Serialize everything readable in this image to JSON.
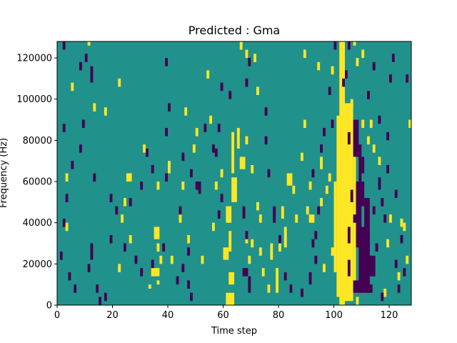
{
  "chart_data": {
    "type": "heatmap",
    "title": "Predicted : Gma",
    "xlabel": "Time step",
    "ylabel": "Frequency (Hz)",
    "xlim": [
      0,
      128
    ],
    "ylim": [
      0,
      128000
    ],
    "x_ticks": [
      0,
      20,
      40,
      60,
      80,
      100,
      120
    ],
    "y_ticks": [
      0,
      20000,
      40000,
      60000,
      80000,
      100000,
      120000
    ],
    "x_tick_labels": [
      "0",
      "20",
      "40",
      "60",
      "80",
      "100",
      "120"
    ],
    "y_tick_labels": [
      "0",
      "20000",
      "40000",
      "60000",
      "80000",
      "100000",
      "120000"
    ],
    "grid": false,
    "colors": {
      "background": "#21918c",
      "high": "#fde725",
      "low": "#440154"
    },
    "yellow_cells": [
      [
        102,
        104,
        0,
        128000
      ],
      [
        103,
        107,
        2000,
        98000
      ],
      [
        101,
        103,
        4000,
        92000
      ],
      [
        107,
        108,
        10000,
        90000
      ],
      [
        100,
        101,
        16000,
        60000
      ],
      [
        61,
        64,
        0,
        6000
      ],
      [
        62,
        64,
        10000,
        16000
      ],
      [
        60,
        62,
        22000,
        28000
      ],
      [
        62,
        63,
        26000,
        36000
      ],
      [
        61,
        63,
        40000,
        48000
      ],
      [
        63,
        65,
        50000,
        62000
      ],
      [
        63,
        64,
        64000,
        84000
      ],
      [
        65,
        66,
        76000,
        86000
      ],
      [
        66,
        68,
        66000,
        72000
      ],
      [
        68,
        69,
        78000,
        82000
      ],
      [
        79,
        80,
        6000,
        18000
      ],
      [
        77,
        78,
        22000,
        30000
      ],
      [
        82,
        83,
        28000,
        38000
      ],
      [
        81,
        82,
        42000,
        48000
      ],
      [
        83,
        85,
        58000,
        64000
      ],
      [
        85,
        86,
        54000,
        58000
      ],
      [
        36,
        37,
        26000,
        30000
      ],
      [
        35,
        37,
        32000,
        38000
      ],
      [
        37,
        38,
        20000,
        24000
      ],
      [
        35,
        36,
        14000,
        16000
      ],
      [
        34,
        37,
        14000,
        18000
      ],
      [
        36,
        37,
        10000,
        12000
      ],
      [
        33,
        34,
        8000,
        10000
      ],
      [
        22,
        23,
        16000,
        20000
      ],
      [
        23,
        24,
        40000,
        44000
      ],
      [
        24,
        25,
        48000,
        52000
      ],
      [
        26,
        27,
        30000,
        34000
      ],
      [
        45,
        46,
        56000,
        60000
      ],
      [
        47,
        48,
        30000,
        34000
      ],
      [
        44,
        45,
        40000,
        44000
      ],
      [
        52,
        53,
        20000,
        24000
      ],
      [
        40,
        41,
        64000,
        70000
      ],
      [
        36,
        37,
        56000,
        60000
      ],
      [
        41,
        42,
        20000,
        24000
      ],
      [
        46,
        47,
        92000,
        96000
      ],
      [
        25,
        27,
        60000,
        64000
      ],
      [
        31,
        32,
        74000,
        78000
      ],
      [
        13,
        14,
        94000,
        98000
      ],
      [
        17,
        18,
        92000,
        96000
      ],
      [
        22,
        23,
        106000,
        110000
      ],
      [
        5,
        6,
        104000,
        108000
      ],
      [
        3,
        4,
        36000,
        40000
      ],
      [
        3,
        4,
        60000,
        64000
      ],
      [
        11,
        12,
        126000,
        128000
      ],
      [
        90,
        91,
        44000,
        48000
      ],
      [
        91,
        93,
        40000,
        44000
      ],
      [
        95,
        96,
        66000,
        72000
      ],
      [
        97,
        98,
        54000,
        58000
      ],
      [
        98,
        99,
        60000,
        64000
      ],
      [
        95,
        96,
        48000,
        52000
      ],
      [
        99,
        100,
        24000,
        28000
      ],
      [
        108,
        109,
        0,
        4000
      ],
      [
        110,
        111,
        120000,
        124000
      ],
      [
        112,
        113,
        78000,
        82000
      ],
      [
        113,
        114,
        86000,
        90000
      ],
      [
        114,
        115,
        74000,
        78000
      ],
      [
        116,
        117,
        68000,
        72000
      ],
      [
        119,
        120,
        28000,
        32000
      ],
      [
        123,
        124,
        12000,
        16000
      ],
      [
        124,
        125,
        38000,
        42000
      ],
      [
        125,
        126,
        36000,
        40000
      ],
      [
        126,
        127,
        20000,
        24000
      ],
      [
        127,
        128,
        86000,
        90000
      ],
      [
        120,
        121,
        40000,
        44000
      ],
      [
        118,
        119,
        4000,
        8000
      ],
      [
        106,
        107,
        96000,
        100000
      ],
      [
        107,
        108,
        126000,
        128000
      ],
      [
        108,
        109,
        116000,
        120000
      ],
      [
        110,
        111,
        86000,
        90000
      ],
      [
        89,
        90,
        120000,
        124000
      ],
      [
        89,
        90,
        86000,
        90000
      ],
      [
        94,
        95,
        114000,
        118000
      ],
      [
        99,
        100,
        112000,
        116000
      ],
      [
        101,
        102,
        46000,
        50000
      ],
      [
        88,
        89,
        70000,
        74000
      ],
      [
        71,
        72,
        118000,
        122000
      ],
      [
        72,
        73,
        102000,
        106000
      ],
      [
        70,
        71,
        64000,
        68000
      ],
      [
        68,
        69,
        30000,
        34000
      ],
      [
        69,
        70,
        20000,
        24000
      ],
      [
        70,
        71,
        28000,
        32000
      ],
      [
        73,
        74,
        24000,
        28000
      ],
      [
        74,
        75,
        14000,
        18000
      ],
      [
        76,
        77,
        6000,
        10000
      ],
      [
        57,
        58,
        56000,
        60000
      ],
      [
        56,
        57,
        36000,
        40000
      ],
      [
        59,
        60,
        62000,
        66000
      ],
      [
        54,
        55,
        110000,
        114000
      ],
      [
        55,
        56,
        88000,
        92000
      ],
      [
        50,
        51,
        82000,
        86000
      ],
      [
        49,
        50,
        74000,
        78000
      ],
      [
        66,
        67,
        124000,
        128000
      ],
      [
        68,
        69,
        120000,
        124000
      ],
      [
        72,
        73,
        46000,
        50000
      ],
      [
        73,
        74,
        40000,
        44000
      ],
      [
        80,
        81,
        26000,
        30000
      ],
      [
        86,
        87,
        40000,
        44000
      ],
      [
        91,
        92,
        56000,
        60000
      ],
      [
        96,
        97,
        16000,
        20000
      ]
    ],
    "purple_cells": [
      [
        109,
        113,
        6000,
        38000
      ],
      [
        111,
        113,
        14000,
        52000
      ],
      [
        108,
        110,
        28000,
        48000
      ],
      [
        108,
        111,
        48000,
        60000
      ],
      [
        109,
        110,
        60000,
        78000
      ],
      [
        110,
        111,
        64000,
        72000
      ],
      [
        107,
        109,
        72000,
        90000
      ],
      [
        113,
        115,
        14000,
        24000
      ],
      [
        105,
        106,
        14000,
        22000
      ],
      [
        107,
        110,
        6000,
        12000
      ],
      [
        112,
        114,
        6000,
        10000
      ],
      [
        105,
        106,
        30000,
        38000
      ],
      [
        69,
        70,
        6000,
        14000
      ],
      [
        67,
        69,
        14000,
        18000
      ],
      [
        68,
        69,
        32000,
        36000
      ],
      [
        67,
        68,
        42000,
        48000
      ],
      [
        58,
        59,
        42000,
        46000
      ],
      [
        59,
        60,
        50000,
        54000
      ],
      [
        56,
        57,
        74000,
        78000
      ],
      [
        58,
        59,
        84000,
        88000
      ],
      [
        50,
        52,
        56000,
        60000
      ],
      [
        48,
        49,
        62000,
        66000
      ],
      [
        51,
        52,
        54000,
        58000
      ],
      [
        45,
        46,
        70000,
        74000
      ],
      [
        44,
        45,
        44000,
        48000
      ],
      [
        47,
        48,
        24000,
        28000
      ],
      [
        45,
        46,
        16000,
        20000
      ],
      [
        43,
        44,
        10000,
        14000
      ],
      [
        47,
        48,
        8000,
        12000
      ],
      [
        48,
        49,
        2000,
        6000
      ],
      [
        39,
        40,
        60000,
        64000
      ],
      [
        38,
        39,
        26000,
        30000
      ],
      [
        34,
        35,
        18000,
        22000
      ],
      [
        30,
        31,
        14000,
        18000
      ],
      [
        26,
        27,
        48000,
        52000
      ],
      [
        24,
        25,
        26000,
        30000
      ],
      [
        21,
        22,
        44000,
        48000
      ],
      [
        19,
        20,
        50000,
        54000
      ],
      [
        15,
        16,
        0,
        4000
      ],
      [
        14,
        15,
        6000,
        10000
      ],
      [
        12,
        13,
        22000,
        30000
      ],
      [
        11,
        12,
        16000,
        20000
      ],
      [
        13,
        14,
        60000,
        64000
      ],
      [
        8,
        9,
        74000,
        78000
      ],
      [
        9,
        10,
        86000,
        90000
      ],
      [
        12,
        13,
        108000,
        116000
      ],
      [
        8,
        9,
        114000,
        118000
      ],
      [
        2,
        3,
        124000,
        128000
      ],
      [
        4,
        5,
        12000,
        16000
      ],
      [
        1,
        2,
        22000,
        26000
      ],
      [
        2,
        3,
        38000,
        42000
      ],
      [
        3,
        4,
        50000,
        54000
      ],
      [
        5,
        6,
        66000,
        70000
      ],
      [
        2,
        3,
        84000,
        88000
      ],
      [
        10,
        11,
        118000,
        122000
      ],
      [
        6,
        7,
        6000,
        10000
      ],
      [
        17,
        18,
        2000,
        6000
      ],
      [
        19,
        20,
        30000,
        34000
      ],
      [
        28,
        29,
        20000,
        24000
      ],
      [
        30,
        31,
        56000,
        60000
      ],
      [
        32,
        33,
        72000,
        76000
      ],
      [
        34,
        35,
        64000,
        68000
      ],
      [
        39,
        40,
        82000,
        86000
      ],
      [
        40,
        41,
        94000,
        98000
      ],
      [
        39,
        40,
        116000,
        120000
      ],
      [
        53,
        54,
        84000,
        88000
      ],
      [
        57,
        58,
        72000,
        76000
      ],
      [
        59,
        60,
        104000,
        108000
      ],
      [
        62,
        63,
        100000,
        104000
      ],
      [
        68,
        69,
        106000,
        110000
      ],
      [
        69,
        70,
        116000,
        120000
      ],
      [
        75,
        76,
        92000,
        96000
      ],
      [
        75,
        76,
        78000,
        82000
      ],
      [
        76,
        77,
        62000,
        66000
      ],
      [
        78,
        79,
        40000,
        48000
      ],
      [
        80,
        81,
        30000,
        34000
      ],
      [
        82,
        83,
        12000,
        16000
      ],
      [
        84,
        85,
        6000,
        10000
      ],
      [
        88,
        89,
        4000,
        8000
      ],
      [
        91,
        92,
        10000,
        16000
      ],
      [
        93,
        94,
        20000,
        24000
      ],
      [
        93,
        94,
        32000,
        36000
      ],
      [
        92,
        93,
        62000,
        66000
      ],
      [
        94,
        95,
        44000,
        48000
      ],
      [
        92,
        93,
        28000,
        32000
      ],
      [
        95,
        96,
        74000,
        78000
      ],
      [
        96,
        97,
        82000,
        86000
      ],
      [
        98,
        99,
        102000,
        106000
      ],
      [
        99,
        100,
        86000,
        90000
      ],
      [
        103,
        104,
        106000,
        110000
      ],
      [
        105,
        106,
        78000,
        84000
      ],
      [
        106,
        107,
        50000,
        56000
      ],
      [
        114,
        115,
        44000,
        48000
      ],
      [
        116,
        117,
        56000,
        62000
      ],
      [
        117,
        118,
        48000,
        52000
      ],
      [
        118,
        119,
        40000,
        44000
      ],
      [
        119,
        120,
        80000,
        84000
      ],
      [
        120,
        121,
        108000,
        112000
      ],
      [
        121,
        122,
        118000,
        122000
      ],
      [
        123,
        124,
        6000,
        10000
      ],
      [
        122,
        123,
        18000,
        22000
      ],
      [
        125,
        126,
        14000,
        18000
      ],
      [
        126,
        127,
        108000,
        112000
      ],
      [
        124,
        125,
        30000,
        34000
      ],
      [
        122,
        123,
        52000,
        56000
      ],
      [
        115,
        116,
        26000,
        30000
      ],
      [
        117,
        118,
        2000,
        6000
      ],
      [
        107,
        108,
        40000,
        44000
      ],
      [
        112,
        113,
        100000,
        104000
      ],
      [
        114,
        115,
        114000,
        118000
      ],
      [
        116,
        117,
        88000,
        92000
      ],
      [
        119,
        120,
        64000,
        68000
      ],
      [
        104,
        105,
        110000,
        114000
      ],
      [
        105,
        106,
        124000,
        128000
      ],
      [
        100,
        101,
        124000,
        128000
      ]
    ]
  }
}
